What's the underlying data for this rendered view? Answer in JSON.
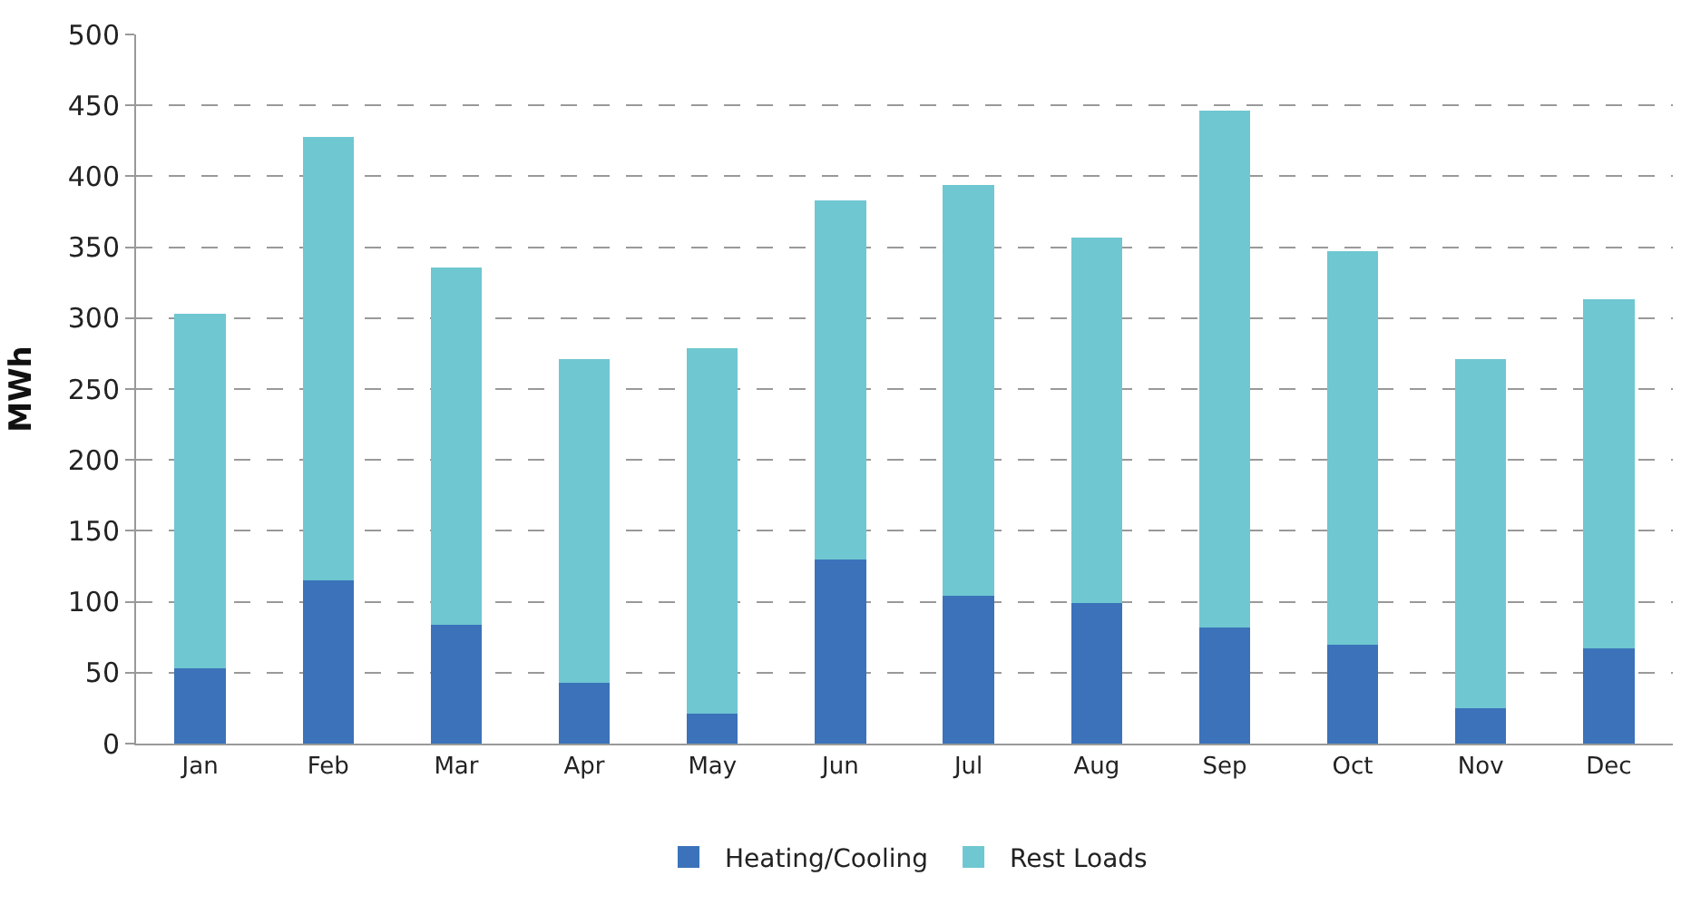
{
  "chart_data": {
    "type": "bar",
    "stacked": true,
    "ylabel": "MWh",
    "categories": [
      "Jan",
      "Feb",
      "Mar",
      "Apr",
      "May",
      "Jun",
      "Jul",
      "Aug",
      "Sep",
      "Oct",
      "Nov",
      "Dec"
    ],
    "series": [
      {
        "name": "Heating/Cooling",
        "color": "#3b72ba",
        "values": [
          53,
          115,
          84,
          43,
          21,
          130,
          104,
          99,
          82,
          70,
          25,
          67
        ]
      },
      {
        "name": "Rest Loads",
        "color": "#6fc7d1",
        "values": [
          250,
          313,
          252,
          228,
          258,
          253,
          290,
          258,
          364,
          277,
          246,
          246
        ]
      }
    ],
    "ylim": [
      0,
      500
    ],
    "yticks": [
      0,
      50,
      100,
      150,
      200,
      250,
      300,
      350,
      400,
      450,
      500
    ],
    "grid": "y",
    "legend": "bottom"
  }
}
